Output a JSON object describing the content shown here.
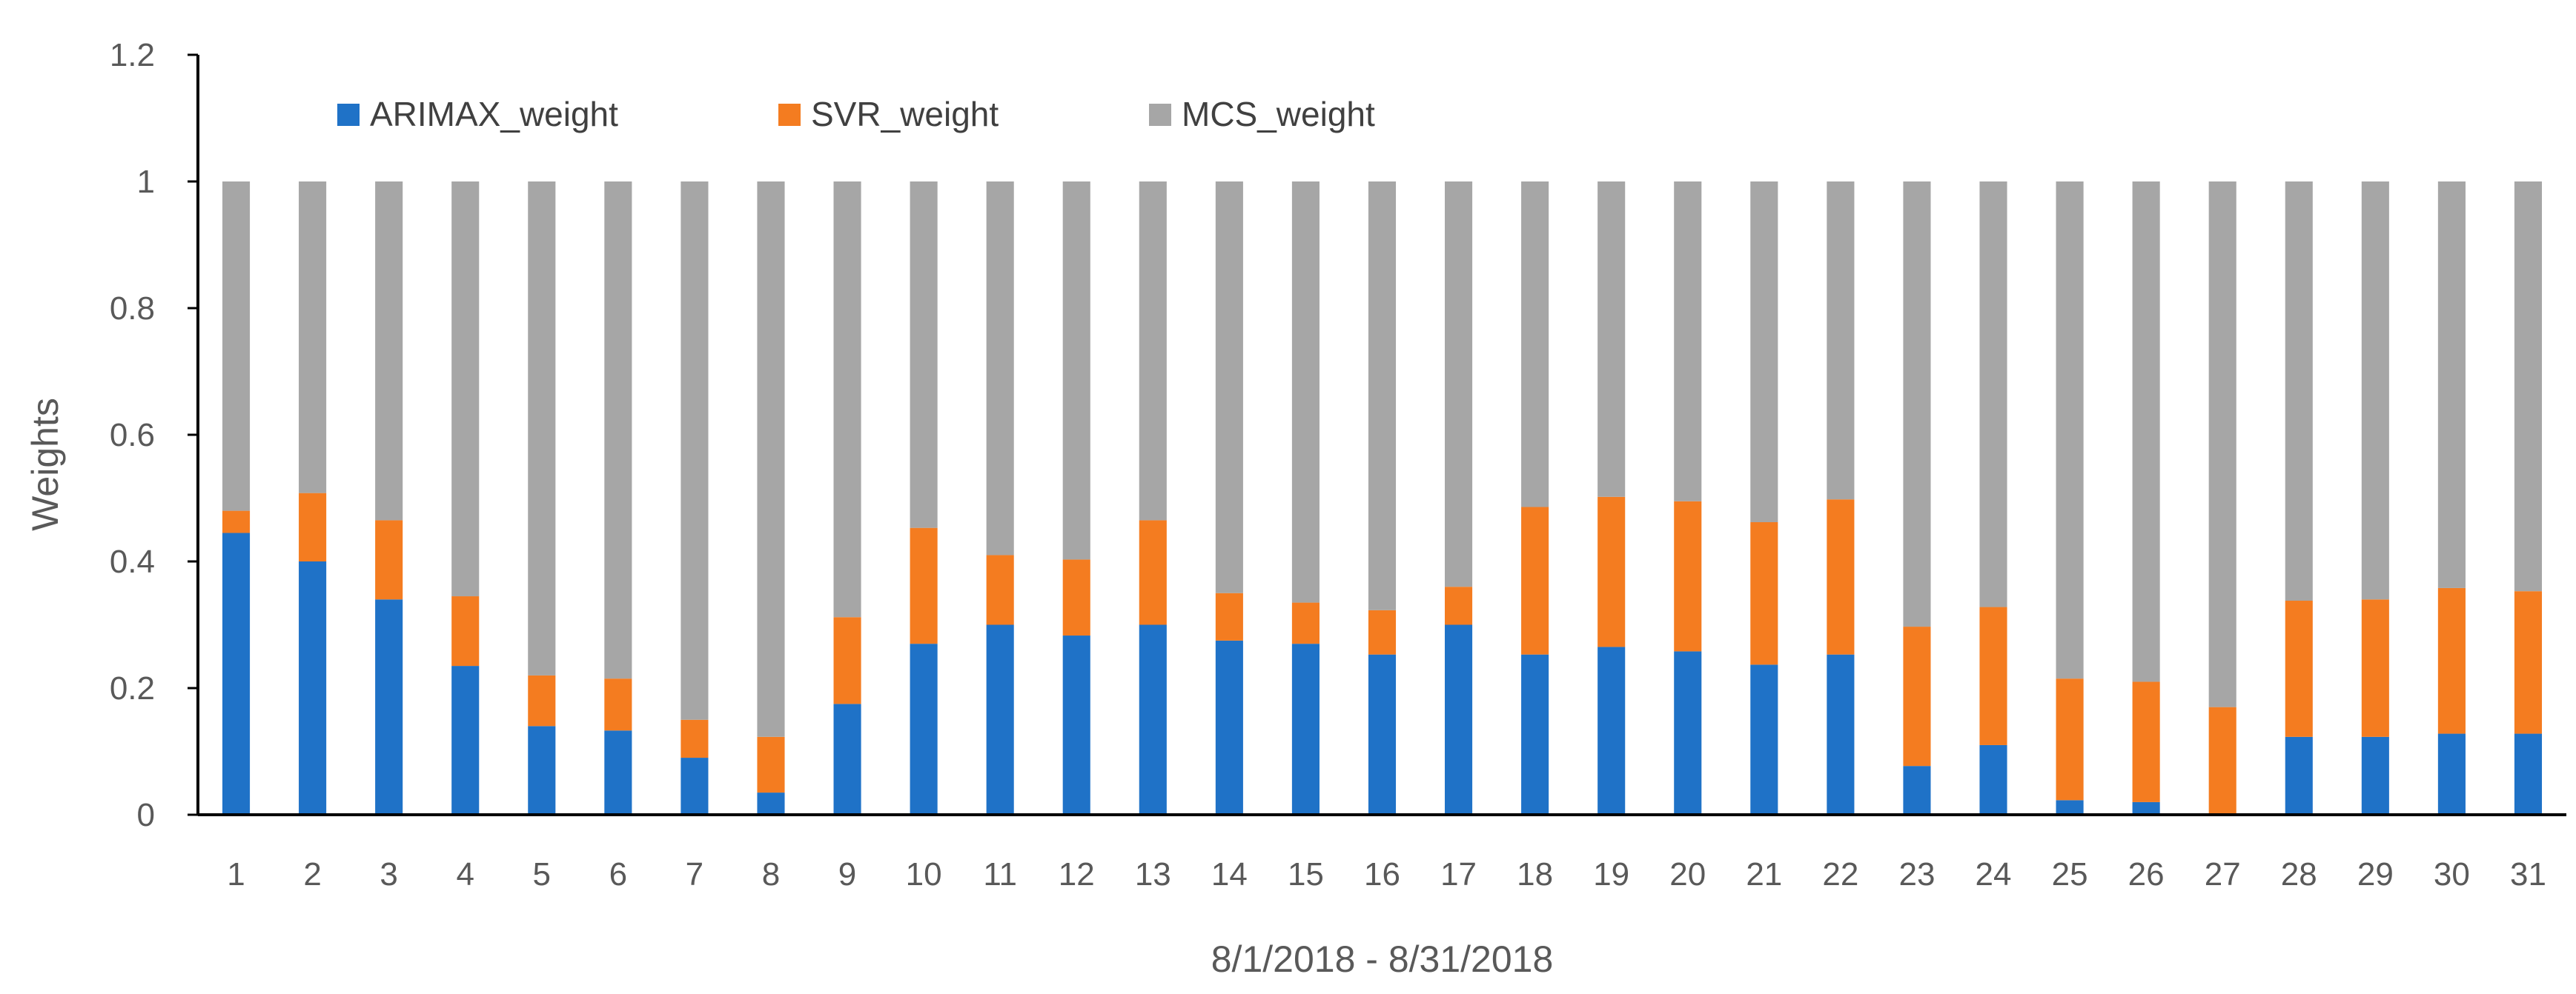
{
  "chart_data": {
    "type": "bar",
    "stacked": true,
    "title": "",
    "xlabel": "8/1/2018 - 8/31/2018",
    "ylabel": "Weights",
    "ylim": [
      0,
      1.2
    ],
    "yticks": [
      0,
      0.2,
      0.4,
      0.6,
      0.8,
      1,
      1.2
    ],
    "ytick_labels": [
      "0",
      "0.2",
      "0.4",
      "0.6",
      "0.8",
      "1",
      "1.2"
    ],
    "grid": false,
    "legend_position": "top-left",
    "categories": [
      "1",
      "2",
      "3",
      "4",
      "5",
      "6",
      "7",
      "8",
      "9",
      "10",
      "11",
      "12",
      "13",
      "14",
      "15",
      "16",
      "17",
      "18",
      "19",
      "20",
      "21",
      "22",
      "23",
      "24",
      "25",
      "26",
      "27",
      "28",
      "29",
      "30",
      "31"
    ],
    "series": [
      {
        "name": "ARIMAX_weight",
        "color": "#1f72c7",
        "values": [
          0.445,
          0.4,
          0.34,
          0.235,
          0.14,
          0.133,
          0.09,
          0.035,
          0.175,
          0.27,
          0.3,
          0.283,
          0.3,
          0.275,
          0.27,
          0.253,
          0.3,
          0.253,
          0.265,
          0.258,
          0.237,
          0.253,
          0.077,
          0.11,
          0.023,
          0.02,
          0.0,
          0.123,
          0.123,
          0.128,
          0.128
        ]
      },
      {
        "name": "SVR_weight",
        "color": "#f47c20",
        "values": [
          0.035,
          0.108,
          0.125,
          0.11,
          0.08,
          0.082,
          0.06,
          0.088,
          0.137,
          0.183,
          0.11,
          0.12,
          0.165,
          0.075,
          0.065,
          0.07,
          0.06,
          0.233,
          0.237,
          0.237,
          0.225,
          0.245,
          0.22,
          0.218,
          0.192,
          0.19,
          0.17,
          0.215,
          0.217,
          0.23,
          0.225
        ]
      },
      {
        "name": "MCS_weight",
        "color": "#a6a6a6",
        "values": [
          0.52,
          0.492,
          0.535,
          0.655,
          0.78,
          0.785,
          0.85,
          0.877,
          0.688,
          0.547,
          0.59,
          0.597,
          0.535,
          0.65,
          0.665,
          0.677,
          0.64,
          0.514,
          0.498,
          0.505,
          0.538,
          0.502,
          0.703,
          0.672,
          0.785,
          0.79,
          0.83,
          0.662,
          0.66,
          0.642,
          0.647
        ]
      }
    ]
  }
}
